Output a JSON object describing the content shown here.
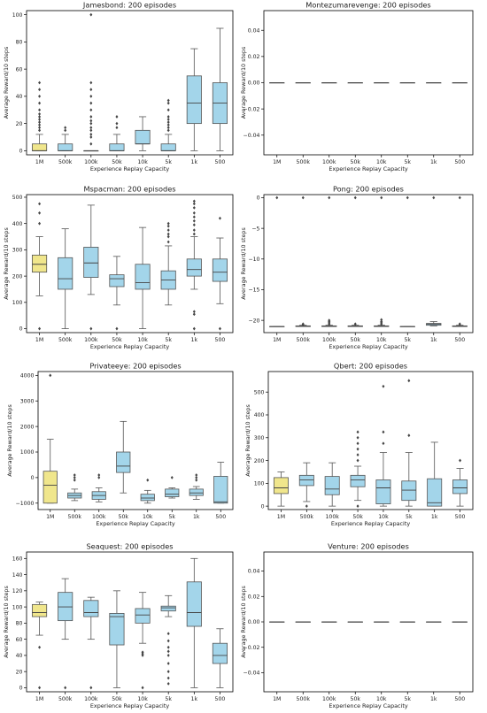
{
  "colors": {
    "first_box": "#f0e68c",
    "other_boxes": "#a3d5ea",
    "stroke": "#555555",
    "median": "#444444"
  },
  "chart_data": [
    {
      "type": "box",
      "title": "Jamesbond: 200 episodes",
      "xlabel": "Experience Replay Capacity",
      "ylabel": "Average Reward/10 steps",
      "categories": [
        "1M",
        "500k",
        "100k",
        "50k",
        "10k",
        "5k",
        "1k",
        "500"
      ],
      "ylim": [
        -3,
        103
      ],
      "yticks": [
        0,
        20,
        40,
        60,
        80,
        100
      ],
      "ytick_labels": [
        "0",
        "20",
        "40",
        "60",
        "80",
        "100"
      ],
      "series": [
        {
          "q1": 0,
          "median": 0,
          "q3": 5,
          "lower": 0,
          "upper": 12,
          "outliers": [
            15,
            17,
            19,
            21,
            23,
            25,
            27,
            30,
            35,
            40,
            45,
            50
          ]
        },
        {
          "q1": 0,
          "median": 0,
          "q3": 5,
          "lower": 0,
          "upper": 12,
          "outliers": [
            15,
            17
          ]
        },
        {
          "q1": 0,
          "median": 0,
          "q3": 0,
          "lower": 0,
          "upper": 0,
          "outliers": [
            5,
            10,
            12,
            15,
            17,
            20,
            22,
            25,
            30,
            35,
            40,
            45,
            50,
            100
          ]
        },
        {
          "q1": 0,
          "median": 0,
          "q3": 5,
          "lower": 0,
          "upper": 12,
          "outliers": [
            17,
            20,
            25
          ]
        },
        {
          "q1": 5,
          "median": 5,
          "q3": 15,
          "lower": 0,
          "upper": 25,
          "outliers": []
        },
        {
          "q1": 0,
          "median": 0,
          "q3": 5,
          "lower": 0,
          "upper": 12,
          "outliers": [
            15,
            17,
            19,
            21,
            23,
            25,
            30,
            35,
            37
          ]
        },
        {
          "q1": 20,
          "median": 35,
          "q3": 55,
          "lower": 0,
          "upper": 75,
          "outliers": []
        },
        {
          "q1": 20,
          "median": 35,
          "q3": 50,
          "lower": 0,
          "upper": 90,
          "outliers": []
        }
      ]
    },
    {
      "type": "box",
      "title": "Montezumarevenge: 200 episodes",
      "xlabel": "Experience Replay Capacity",
      "ylabel": "Average Reward/10 steps",
      "categories": [
        "1M",
        "500k",
        "100k",
        "50k",
        "10k",
        "5k",
        "1k",
        "500"
      ],
      "ylim": [
        -0.055,
        0.055
      ],
      "yticks": [
        -0.04,
        -0.02,
        0,
        0.02,
        0.04
      ],
      "ytick_labels": [
        "−0.04",
        "−0.02",
        "0.00",
        "0.02",
        "0.04"
      ],
      "series": [
        {
          "q1": 0,
          "median": 0,
          "q3": 0,
          "lower": 0,
          "upper": 0,
          "outliers": []
        },
        {
          "q1": 0,
          "median": 0,
          "q3": 0,
          "lower": 0,
          "upper": 0,
          "outliers": []
        },
        {
          "q1": 0,
          "median": 0,
          "q3": 0,
          "lower": 0,
          "upper": 0,
          "outliers": []
        },
        {
          "q1": 0,
          "median": 0,
          "q3": 0,
          "lower": 0,
          "upper": 0,
          "outliers": []
        },
        {
          "q1": 0,
          "median": 0,
          "q3": 0,
          "lower": 0,
          "upper": 0,
          "outliers": []
        },
        {
          "q1": 0,
          "median": 0,
          "q3": 0,
          "lower": 0,
          "upper": 0,
          "outliers": []
        },
        {
          "q1": 0,
          "median": 0,
          "q3": 0,
          "lower": 0,
          "upper": 0,
          "outliers": []
        },
        {
          "q1": 0,
          "median": 0,
          "q3": 0,
          "lower": 0,
          "upper": 0,
          "outliers": []
        }
      ]
    },
    {
      "type": "box",
      "title": "Mspacman: 200 episodes",
      "xlabel": "Experience Replay Capacity",
      "ylabel": "Average Reward/10 steps",
      "categories": [
        "1M",
        "500k",
        "100k",
        "50k",
        "10k",
        "5k",
        "1k",
        "500"
      ],
      "ylim": [
        -15,
        510
      ],
      "yticks": [
        0,
        100,
        200,
        300,
        400,
        500
      ],
      "ytick_labels": [
        "0",
        "100",
        "200",
        "300",
        "400",
        "500"
      ],
      "series": [
        {
          "q1": 215,
          "median": 245,
          "q3": 280,
          "lower": 125,
          "upper": 350,
          "outliers": [
            0,
            400,
            440,
            475
          ]
        },
        {
          "q1": 150,
          "median": 190,
          "q3": 270,
          "lower": 0,
          "upper": 380,
          "outliers": []
        },
        {
          "q1": 195,
          "median": 250,
          "q3": 310,
          "lower": 130,
          "upper": 470,
          "outliers": [
            0
          ]
        },
        {
          "q1": 160,
          "median": 190,
          "q3": 205,
          "lower": 90,
          "upper": 275,
          "outliers": [
            0
          ]
        },
        {
          "q1": 150,
          "median": 175,
          "q3": 245,
          "lower": 0,
          "upper": 385,
          "outliers": []
        },
        {
          "q1": 150,
          "median": 185,
          "q3": 220,
          "lower": 90,
          "upper": 315,
          "outliers": [
            330,
            350,
            360,
            375,
            390,
            400
          ]
        },
        {
          "q1": 200,
          "median": 225,
          "q3": 265,
          "lower": 150,
          "upper": 350,
          "outliers": [
            0,
            55,
            65,
            360,
            375,
            395,
            410,
            425,
            440,
            460,
            475,
            485
          ]
        },
        {
          "q1": 180,
          "median": 215,
          "q3": 265,
          "lower": 95,
          "upper": 345,
          "outliers": [
            0,
            420
          ]
        }
      ]
    },
    {
      "type": "box",
      "title": "Pong: 200 episodes",
      "xlabel": "Experience Replay Capacity",
      "ylabel": "Average Reward/10 steps",
      "categories": [
        "1M",
        "500k",
        "100k",
        "50k",
        "10k",
        "5k",
        "1k",
        "500"
      ],
      "ylim": [
        -22,
        0.5
      ],
      "yticks": [
        -20,
        -15,
        -10,
        -5,
        0
      ],
      "ytick_labels": [
        "−20",
        "−15",
        "−10",
        "−5",
        "0"
      ],
      "series": [
        {
          "q1": -21,
          "median": -21,
          "q3": -21,
          "lower": -21,
          "upper": -21,
          "outliers": [
            0
          ]
        },
        {
          "q1": -21,
          "median": -21,
          "q3": -20.9,
          "lower": -21,
          "upper": -20.8,
          "outliers": [
            -20.7,
            -20.6,
            0
          ]
        },
        {
          "q1": -21,
          "median": -21,
          "q3": -20.9,
          "lower": -21,
          "upper": -20.8,
          "outliers": [
            -20.6,
            -20.4,
            -20.2,
            -20,
            0
          ]
        },
        {
          "q1": -21,
          "median": -21,
          "q3": -20.9,
          "lower": -21,
          "upper": -20.8,
          "outliers": [
            -20.6,
            0
          ]
        },
        {
          "q1": -21,
          "median": -21,
          "q3": -20.9,
          "lower": -21,
          "upper": -20.8,
          "outliers": [
            -20.6,
            -20.4,
            -20.2,
            -19.9,
            0
          ]
        },
        {
          "q1": -21,
          "median": -21,
          "q3": -21,
          "lower": -21,
          "upper": -21,
          "outliers": [
            0
          ]
        },
        {
          "q1": -20.8,
          "median": -20.6,
          "q3": -20.5,
          "lower": -20.9,
          "upper": -20.2,
          "outliers": [
            0
          ]
        },
        {
          "q1": -21,
          "median": -21,
          "q3": -20.9,
          "lower": -21,
          "upper": -20.8,
          "outliers": [
            -20.6,
            0
          ]
        }
      ]
    },
    {
      "type": "box",
      "title": "Privateeye: 200 episodes",
      "xlabel": "Experience Replay Capacity",
      "ylabel": "Average Reward/10 steps",
      "categories": [
        "1M",
        "500k",
        "100k",
        "50k",
        "10k",
        "5k",
        "1k",
        "500"
      ],
      "ylim": [
        -1250,
        4150
      ],
      "yticks": [
        -1000,
        0,
        1000,
        2000,
        3000,
        4000
      ],
      "ytick_labels": [
        "−1000",
        "0",
        "1000",
        "2000",
        "3000",
        "4000"
      ],
      "series": [
        {
          "q1": -1000,
          "median": -300,
          "q3": 250,
          "lower": -1000,
          "upper": 1500,
          "outliers": [
            4000
          ]
        },
        {
          "q1": -800,
          "median": -700,
          "q3": -600,
          "lower": -900,
          "upper": -450,
          "outliers": [
            -100,
            0,
            100
          ]
        },
        {
          "q1": -850,
          "median": -700,
          "q3": -550,
          "lower": -950,
          "upper": -400,
          "outliers": [
            0,
            100
          ]
        },
        {
          "q1": 200,
          "median": 450,
          "q3": 1000,
          "lower": -600,
          "upper": 2200,
          "outliers": []
        },
        {
          "q1": -900,
          "median": -800,
          "q3": -650,
          "lower": -1000,
          "upper": -500,
          "outliers": [
            -100
          ]
        },
        {
          "q1": -750,
          "median": -650,
          "q3": -450,
          "lower": -800,
          "upper": -400,
          "outliers": [
            0
          ]
        },
        {
          "q1": -700,
          "median": -600,
          "q3": -450,
          "lower": -850,
          "upper": -350,
          "outliers": [
            -100,
            0,
            100
          ]
        },
        {
          "q1": -1000,
          "median": -950,
          "q3": 50,
          "lower": -1000,
          "upper": 600,
          "outliers": []
        }
      ]
    },
    {
      "type": "box",
      "title": "Qbert: 200 episodes",
      "xlabel": "Experience Replay Capacity",
      "ylabel": "Average Reward/10 steps",
      "categories": [
        "1M",
        "500k",
        "100k",
        "50k",
        "10k",
        "5k",
        "1k",
        "500"
      ],
      "ylim": [
        -15,
        590
      ],
      "yticks": [
        0,
        100,
        200,
        300,
        400,
        500
      ],
      "ytick_labels": [
        "0",
        "100",
        "200",
        "300",
        "400",
        "500"
      ],
      "series": [
        {
          "q1": 55,
          "median": 80,
          "q3": 125,
          "lower": 0,
          "upper": 150,
          "outliers": []
        },
        {
          "q1": 90,
          "median": 115,
          "q3": 135,
          "lower": 20,
          "upper": 190,
          "outliers": [
            0
          ]
        },
        {
          "q1": 50,
          "median": 75,
          "q3": 130,
          "lower": 0,
          "upper": 190,
          "outliers": []
        },
        {
          "q1": 85,
          "median": 115,
          "q3": 135,
          "lower": 25,
          "upper": 175,
          "outliers": [
            0,
            200,
            225,
            250,
            275,
            300,
            325
          ]
        },
        {
          "q1": 10,
          "median": 80,
          "q3": 115,
          "lower": 0,
          "upper": 235,
          "outliers": [
            275,
            325,
            525
          ]
        },
        {
          "q1": 25,
          "median": 70,
          "q3": 110,
          "lower": 0,
          "upper": 235,
          "outliers": [
            310,
            550
          ]
        },
        {
          "q1": 0,
          "median": 15,
          "q3": 120,
          "lower": 0,
          "upper": 280,
          "outliers": []
        },
        {
          "q1": 55,
          "median": 80,
          "q3": 115,
          "lower": 0,
          "upper": 165,
          "outliers": [
            200
          ]
        }
      ]
    },
    {
      "type": "box",
      "title": "Seaquest: 200 episodes",
      "xlabel": "Experience Replay Capacity",
      "ylabel": "Average Reward/10 steps",
      "categories": [
        "1M",
        "500k",
        "100k",
        "50k",
        "10k",
        "5k",
        "1k",
        "500"
      ],
      "ylim": [
        -5,
        168
      ],
      "yticks": [
        0,
        20,
        40,
        60,
        80,
        100,
        120,
        140,
        160
      ],
      "ytick_labels": [
        "0",
        "20",
        "40",
        "60",
        "80",
        "100",
        "120",
        "140",
        "160"
      ],
      "series": [
        {
          "q1": 88,
          "median": 93,
          "q3": 103,
          "lower": 65,
          "upper": 106,
          "outliers": [
            0,
            50
          ]
        },
        {
          "q1": 83,
          "median": 100,
          "q3": 118,
          "lower": 60,
          "upper": 135,
          "outliers": [
            0
          ]
        },
        {
          "q1": 88,
          "median": 93,
          "q3": 108,
          "lower": 60,
          "upper": 112,
          "outliers": [
            0
          ]
        },
        {
          "q1": 53,
          "median": 88,
          "q3": 92,
          "lower": 0,
          "upper": 120,
          "outliers": []
        },
        {
          "q1": 80,
          "median": 90,
          "q3": 98,
          "lower": 55,
          "upper": 118,
          "outliers": [
            0,
            40,
            42,
            44
          ]
        },
        {
          "q1": 95,
          "median": 99,
          "q3": 101,
          "lower": 88,
          "upper": 114,
          "outliers": [
            5,
            12,
            20,
            30,
            40,
            45,
            50,
            58,
            67
          ]
        },
        {
          "q1": 76,
          "median": 93,
          "q3": 131,
          "lower": 0,
          "upper": 160,
          "outliers": []
        },
        {
          "q1": 30,
          "median": 40,
          "q3": 55,
          "lower": 0,
          "upper": 73,
          "outliers": []
        }
      ]
    },
    {
      "type": "box",
      "title": "Venture: 200 episodes",
      "xlabel": "Experience Replay Capacity",
      "ylabel": "Average Reward/10 steps",
      "categories": [
        "1M",
        "500k",
        "100k",
        "50k",
        "10k",
        "5k",
        "1k",
        "500"
      ],
      "ylim": [
        -0.055,
        0.055
      ],
      "yticks": [
        -0.04,
        -0.02,
        0,
        0.02,
        0.04
      ],
      "ytick_labels": [
        "−0.04",
        "−0.02",
        "0.00",
        "0.02",
        "0.04"
      ],
      "series": [
        {
          "q1": 0,
          "median": 0,
          "q3": 0,
          "lower": 0,
          "upper": 0,
          "outliers": []
        },
        {
          "q1": 0,
          "median": 0,
          "q3": 0,
          "lower": 0,
          "upper": 0,
          "outliers": []
        },
        {
          "q1": 0,
          "median": 0,
          "q3": 0,
          "lower": 0,
          "upper": 0,
          "outliers": []
        },
        {
          "q1": 0,
          "median": 0,
          "q3": 0,
          "lower": 0,
          "upper": 0,
          "outliers": []
        },
        {
          "q1": 0,
          "median": 0,
          "q3": 0,
          "lower": 0,
          "upper": 0,
          "outliers": []
        },
        {
          "q1": 0,
          "median": 0,
          "q3": 0,
          "lower": 0,
          "upper": 0,
          "outliers": []
        },
        {
          "q1": 0,
          "median": 0,
          "q3": 0,
          "lower": 0,
          "upper": 0,
          "outliers": []
        },
        {
          "q1": 0,
          "median": 0,
          "q3": 0,
          "lower": 0,
          "upper": 0,
          "outliers": []
        }
      ]
    }
  ]
}
